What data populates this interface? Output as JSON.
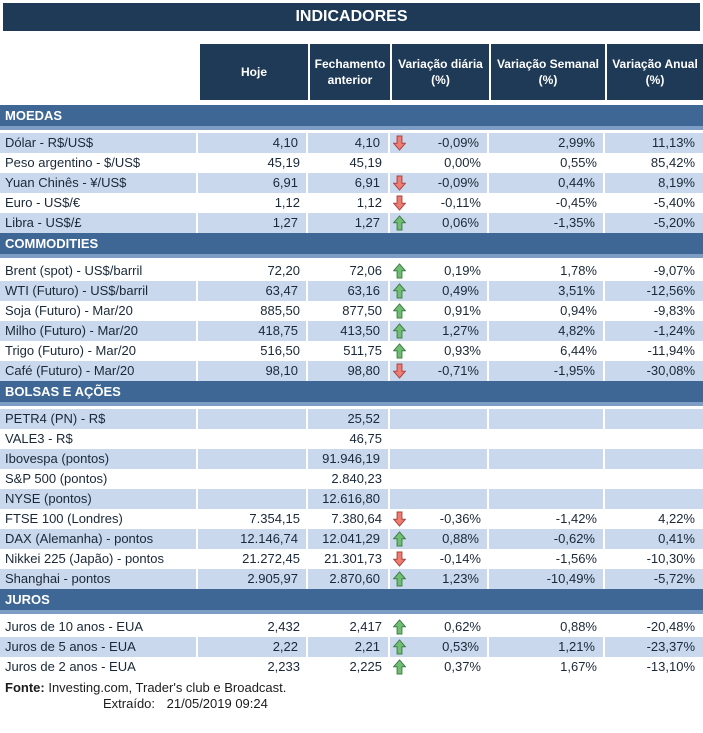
{
  "title": "INDICADORES",
  "columns": [
    "Hoje",
    "Fechamento anterior",
    "Variação diária (%)",
    "Variação Semanal (%)",
    "Variação Anual (%)"
  ],
  "sections": [
    {
      "name": "MOEDAS",
      "rows": [
        {
          "label": "Dólar - R$/US$",
          "hoje": "4,10",
          "fechamento": "4,10",
          "arrow": "down",
          "diaria": "-0,09%",
          "semanal": "2,99%",
          "anual": "11,13%"
        },
        {
          "label": "Peso argentino - $/US$",
          "hoje": "45,19",
          "fechamento": "45,19",
          "arrow": null,
          "diaria": "0,00%",
          "semanal": "0,55%",
          "anual": "85,42%"
        },
        {
          "label": "Yuan Chinês - ¥/US$",
          "hoje": "6,91",
          "fechamento": "6,91",
          "arrow": "down",
          "diaria": "-0,09%",
          "semanal": "0,44%",
          "anual": "8,19%"
        },
        {
          "label": "Euro - US$/€",
          "hoje": "1,12",
          "fechamento": "1,12",
          "arrow": "down",
          "diaria": "-0,11%",
          "semanal": "-0,45%",
          "anual": "-5,40%"
        },
        {
          "label": "Libra - US$/£",
          "hoje": "1,27",
          "fechamento": "1,27",
          "arrow": "up",
          "diaria": "0,06%",
          "semanal": "-1,35%",
          "anual": "-5,20%"
        }
      ]
    },
    {
      "name": "COMMODITIES",
      "rows": [
        {
          "label": "Brent (spot) - US$/barril",
          "hoje": "72,20",
          "fechamento": "72,06",
          "arrow": "up",
          "diaria": "0,19%",
          "semanal": "1,78%",
          "anual": "-9,07%"
        },
        {
          "label": "WTI (Futuro) - US$/barril",
          "hoje": "63,47",
          "fechamento": "63,16",
          "arrow": "up",
          "diaria": "0,49%",
          "semanal": "3,51%",
          "anual": "-12,56%"
        },
        {
          "label": "Soja (Futuro) - Mar/20",
          "hoje": "885,50",
          "fechamento": "877,50",
          "arrow": "up",
          "diaria": "0,91%",
          "semanal": "0,94%",
          "anual": "-9,83%"
        },
        {
          "label": "Milho (Futuro) - Mar/20",
          "hoje": "418,75",
          "fechamento": "413,50",
          "arrow": "up",
          "diaria": "1,27%",
          "semanal": "4,82%",
          "anual": "-1,24%"
        },
        {
          "label": "Trigo (Futuro) - Mar/20",
          "hoje": "516,50",
          "fechamento": "511,75",
          "arrow": "up",
          "diaria": "0,93%",
          "semanal": "6,44%",
          "anual": "-11,94%"
        },
        {
          "label": "Café (Futuro) - Mar/20",
          "hoje": "98,10",
          "fechamento": "98,80",
          "arrow": "down",
          "diaria": "-0,71%",
          "semanal": "-1,95%",
          "anual": "-30,08%"
        }
      ]
    },
    {
      "name": "BOLSAS E AÇÕES",
      "rows": [
        {
          "label": "PETR4 (PN) - R$",
          "hoje": "",
          "fechamento": "25,52",
          "arrow": null,
          "diaria": "",
          "semanal": "",
          "anual": ""
        },
        {
          "label": "VALE3 - R$",
          "hoje": "",
          "fechamento": "46,75",
          "arrow": null,
          "diaria": "",
          "semanal": "",
          "anual": ""
        },
        {
          "label": "Ibovespa (pontos)",
          "hoje": "",
          "fechamento": "91.946,19",
          "arrow": null,
          "diaria": "",
          "semanal": "",
          "anual": ""
        },
        {
          "label": "S&P 500 (pontos)",
          "hoje": "",
          "fechamento": "2.840,23",
          "arrow": null,
          "diaria": "",
          "semanal": "",
          "anual": ""
        },
        {
          "label": "NYSE (pontos)",
          "hoje": "",
          "fechamento": "12.616,80",
          "arrow": null,
          "diaria": "",
          "semanal": "",
          "anual": ""
        },
        {
          "label": "FTSE 100 (Londres)",
          "hoje": "7.354,15",
          "fechamento": "7.380,64",
          "arrow": "down",
          "diaria": "-0,36%",
          "semanal": "-1,42%",
          "anual": "4,22%"
        },
        {
          "label": "DAX (Alemanha) - pontos",
          "hoje": "12.146,74",
          "fechamento": "12.041,29",
          "arrow": "up",
          "diaria": "0,88%",
          "semanal": "-0,62%",
          "anual": "0,41%"
        },
        {
          "label": "Nikkei 225 (Japão) - pontos",
          "hoje": "21.272,45",
          "fechamento": "21.301,73",
          "arrow": "down",
          "diaria": "-0,14%",
          "semanal": "-1,56%",
          "anual": "-10,30%"
        },
        {
          "label": "Shanghai - pontos",
          "hoje": "2.905,97",
          "fechamento": "2.870,60",
          "arrow": "up",
          "diaria": "1,23%",
          "semanal": "-10,49%",
          "anual": "-5,72%"
        }
      ]
    },
    {
      "name": "JUROS",
      "rows": [
        {
          "label": "Juros de 10 anos - EUA",
          "hoje": "2,432",
          "fechamento": "2,417",
          "arrow": "up",
          "diaria": "0,62%",
          "semanal": "0,88%",
          "anual": "-20,48%"
        },
        {
          "label": "Juros de 5 anos - EUA",
          "hoje": "2,22",
          "fechamento": "2,21",
          "arrow": "up",
          "diaria": "0,53%",
          "semanal": "1,21%",
          "anual": "-23,37%"
        },
        {
          "label": "Juros de 2 anos - EUA",
          "hoje": "2,233",
          "fechamento": "2,225",
          "arrow": "up",
          "diaria": "0,37%",
          "semanal": "1,67%",
          "anual": "-13,10%"
        }
      ]
    }
  ],
  "footer": {
    "fonte_label": "Fonte:",
    "fonte_text": "Investing.com, Trader's club e Broadcast.",
    "extraido_label": "Extraído:",
    "extraido_value": "21/05/2019 09:24"
  },
  "colors": {
    "header_navy": "#1F3A56",
    "section_blue": "#3F6795",
    "section_strip": "#7E9DC4",
    "row_light_blue": "#C9D8EC",
    "text_dark": "#1A2838",
    "arrow_up_fill": "#70BE73",
    "arrow_up_border": "#3E7D46",
    "arrow_down_fill": "#EE7C72",
    "arrow_down_border": "#AA433E"
  }
}
